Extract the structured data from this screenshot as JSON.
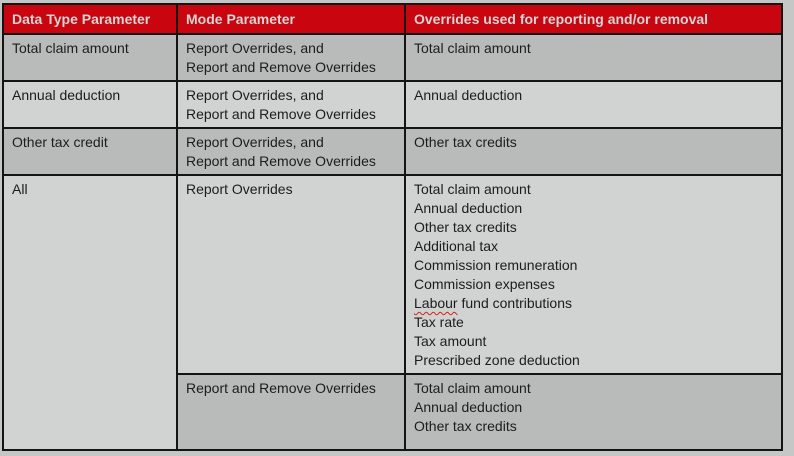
{
  "table": {
    "headers": {
      "data_type": "Data Type Parameter",
      "mode": "Mode Parameter",
      "overrides": "Overrides used for reporting and/or removal"
    },
    "rows": [
      {
        "data_type": "Total claim amount",
        "mode": "Report Overrides, and\nReport and Remove Overrides",
        "overrides": "Total claim amount"
      },
      {
        "data_type": "Annual deduction",
        "mode": "Report Overrides, and\nReport and Remove Overrides",
        "overrides": "Annual deduction"
      },
      {
        "data_type": "Other tax credit",
        "mode": "Report Overrides, and\nReport and Remove Overrides",
        "overrides": "Other tax credits"
      },
      {
        "data_type": "All",
        "mode": "Report Overrides",
        "overrides": "Total claim amount\nAnnual deduction\nOther tax credits\nAdditional tax\nCommission remuneration\nCommission expenses\nLabour fund contributions\nTax rate\nTax amount\nPrescribed zone deduction"
      },
      {
        "data_type": null,
        "mode": "Report and Remove Overrides",
        "overrides": "Total claim amount\nAnnual deduction\nOther tax credits"
      }
    ],
    "spellcheck_word": "Labour"
  },
  "colors": {
    "header_bg": "#c9060f",
    "header_text": "#d3d5d6",
    "row_dark": "#b9bbba",
    "row_light": "#d1d3d2",
    "page_bg": "#c5c7c6",
    "border": "#141414",
    "squiggle": "#d42015"
  }
}
